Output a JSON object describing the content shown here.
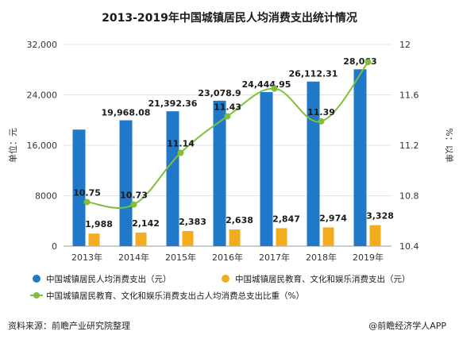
{
  "title": "2013-2019年中国城镇居民人均消费支出统计情况",
  "footer": {
    "source": "资料来源：前瞻产业研究院整理",
    "brand": "@前瞻经济学人APP"
  },
  "colors": {
    "bar1": "#1f78c8",
    "bar2": "#f3ac1d",
    "line": "#7fbf3a",
    "grid": "#e3e3e3",
    "axis_text": "#333333"
  },
  "chart_data": {
    "type": "bar",
    "categories": [
      "2013年",
      "2014年",
      "2015年",
      "2016年",
      "2017年",
      "2018年",
      "2019年"
    ],
    "ylabel": "单位：元",
    "y2label": "%：以单",
    "ylim": [
      0,
      32000
    ],
    "yticks": [
      0,
      8000,
      16000,
      24000,
      32000
    ],
    "ytick_labels": [
      "0",
      "8000",
      "16,000",
      "24,000",
      "32,000"
    ],
    "y2lim": [
      10.4,
      12
    ],
    "y2ticks": [
      10.4,
      10.8,
      11.2,
      11.6,
      12
    ],
    "y2tick_labels": [
      "10.4",
      "10.8",
      "11.2",
      "11.6",
      "12"
    ],
    "grid": true,
    "legend_position": "bottom",
    "series": [
      {
        "name": "中国城镇居民人均消费支出（元）",
        "kind": "bar",
        "axis": "left",
        "values": [
          18488,
          19968.08,
          21392.36,
          23078.9,
          24444.95,
          26112.31,
          28063
        ],
        "labels": [
          "",
          "19,968.08",
          "21,392.36",
          "23,078.9",
          "24,444.95",
          "26,112.31",
          "28,063"
        ]
      },
      {
        "name": "中国城镇居民教育、文化和娱乐消费支出（元）",
        "kind": "bar",
        "axis": "left",
        "values": [
          1988,
          2142,
          2383,
          2638,
          2847,
          2974,
          3328
        ],
        "labels": [
          "1,988",
          "2,142",
          "2,383",
          "2,638",
          "2,847",
          "2,974",
          "3,328"
        ]
      },
      {
        "name": "中国城镇居民教育、文化和娱乐消费支出占人均消费总支出比重（%）",
        "kind": "line",
        "axis": "right",
        "values": [
          10.75,
          10.73,
          11.14,
          11.43,
          11.65,
          11.39,
          11.86
        ],
        "labels": [
          "10.75",
          "10.73",
          "11.14",
          "11.43",
          "",
          "11.39",
          ""
        ]
      }
    ]
  }
}
